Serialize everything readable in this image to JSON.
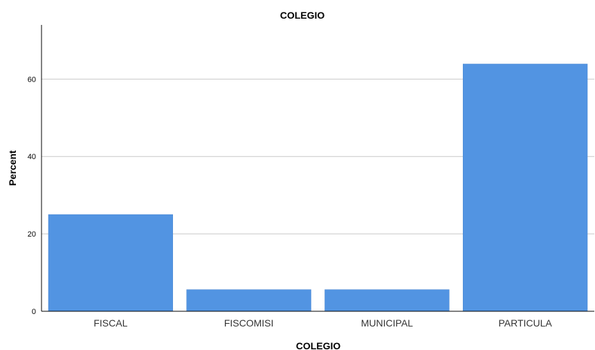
{
  "chart_data": {
    "type": "bar",
    "title": "COLEGIO",
    "xlabel": "COLEGIO",
    "ylabel": "Percent",
    "categories": [
      "FISCAL",
      "FISCOMISI",
      "MUNICIPAL",
      "PARTICULA"
    ],
    "values": [
      25.0,
      5.6,
      5.6,
      63.9
    ],
    "yticks": [
      "0",
      "20",
      "40",
      "60"
    ],
    "ylim": [
      0,
      74
    ],
    "grid": true,
    "bar_color": "#5294E2"
  }
}
